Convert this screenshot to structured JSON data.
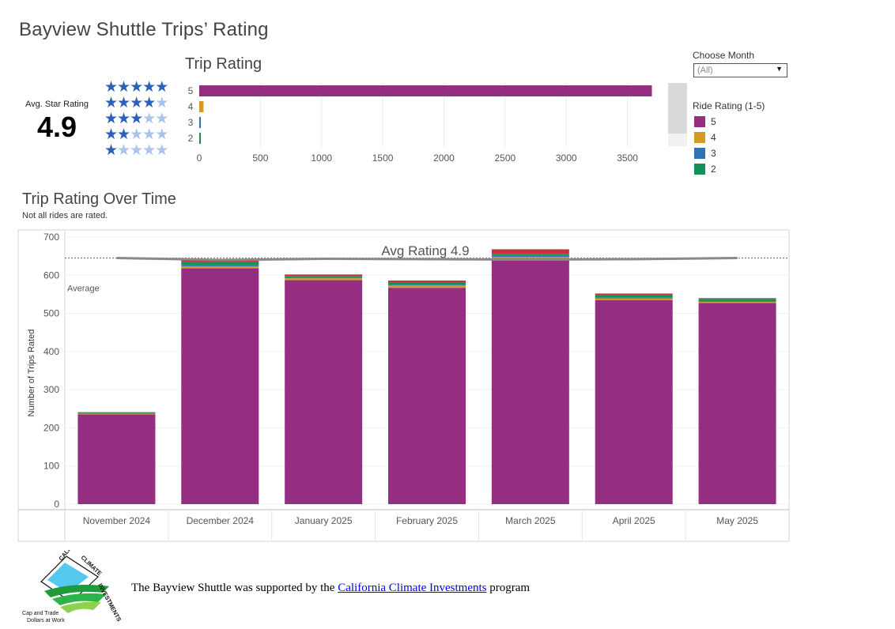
{
  "title": "Bayview Shuttle Trips’ Rating",
  "avg_star": {
    "label": "Avg. Star Rating",
    "value": "4.9",
    "star_rows": [
      5,
      4,
      3,
      2,
      1
    ],
    "star_icon": "star-icon",
    "star_on_color": "#2a60b8",
    "star_off_color": "#a9c4ea"
  },
  "filters": {
    "month_label": "Choose Month",
    "month_value": "(All)",
    "month_icon": "chevron-down-icon"
  },
  "legend": {
    "title": "Ride Rating (1-5)",
    "items": [
      {
        "label": "5",
        "color": "#952d81"
      },
      {
        "label": "4",
        "color": "#d39a24"
      },
      {
        "label": "3",
        "color": "#2f73b6"
      },
      {
        "label": "2",
        "color": "#14915a"
      }
    ]
  },
  "chart_data": [
    {
      "type": "bar",
      "orientation": "horizontal",
      "title": "Trip Rating",
      "categories": [
        "5",
        "4",
        "3",
        "2"
      ],
      "values": [
        3700,
        35,
        12,
        10
      ],
      "colors": [
        "#952d81",
        "#d39a24",
        "#2f73b6",
        "#14915a"
      ],
      "xlim": [
        0,
        3800
      ],
      "xticks": [
        0,
        500,
        1000,
        1500,
        2000,
        2500,
        3000,
        3500
      ],
      "grid": true
    },
    {
      "type": "bar",
      "stacked": true,
      "title": "Trip Rating Over Time",
      "subtitle": "Not all rides are rated.",
      "ylabel": "Number of Trips Rated",
      "xlabel": "",
      "categories": [
        "November 2024",
        "December 2024",
        "January 2025",
        "February 2025",
        "March 2025",
        "April 2025",
        "May 2025"
      ],
      "series": [
        {
          "name": "5",
          "color": "#952d81",
          "values": [
            235,
            618,
            587,
            567,
            640,
            535,
            527
          ]
        },
        {
          "name": "4",
          "color": "#d39a24",
          "values": [
            2,
            5,
            5,
            6,
            8,
            4,
            3
          ]
        },
        {
          "name": "3",
          "color": "#2f73b6",
          "values": [
            1,
            3,
            2,
            2,
            3,
            2,
            2
          ]
        },
        {
          "name": "2",
          "color": "#14915a",
          "values": [
            2,
            8,
            4,
            6,
            5,
            6,
            6
          ]
        },
        {
          "name": "1",
          "color": "#c8323c",
          "values": [
            1,
            7,
            4,
            5,
            12,
            5,
            2
          ]
        }
      ],
      "ylim": [
        0,
        700
      ],
      "yticks": [
        0,
        100,
        200,
        300,
        400,
        500,
        600,
        700
      ],
      "reference_line": {
        "label": "Average",
        "value": 645
      },
      "avg_line": {
        "label": "Avg Rating 4.9",
        "values": [
          645,
          640,
          643,
          642,
          641,
          642,
          645
        ]
      },
      "grid": true
    }
  ],
  "footer": {
    "logo_name": "california-climate-investments-logo",
    "logo_text": {
      "top": "CALIFORNIA",
      "right": "CLIMATE",
      "bottom": "INVESTMENTS",
      "tagline_1": "Cap and Trade",
      "tagline_2": "Dollars at Work"
    },
    "text_before": "The Bayview Shuttle was supported by the ",
    "link_text": "California Climate Investments",
    "text_after": " program"
  }
}
